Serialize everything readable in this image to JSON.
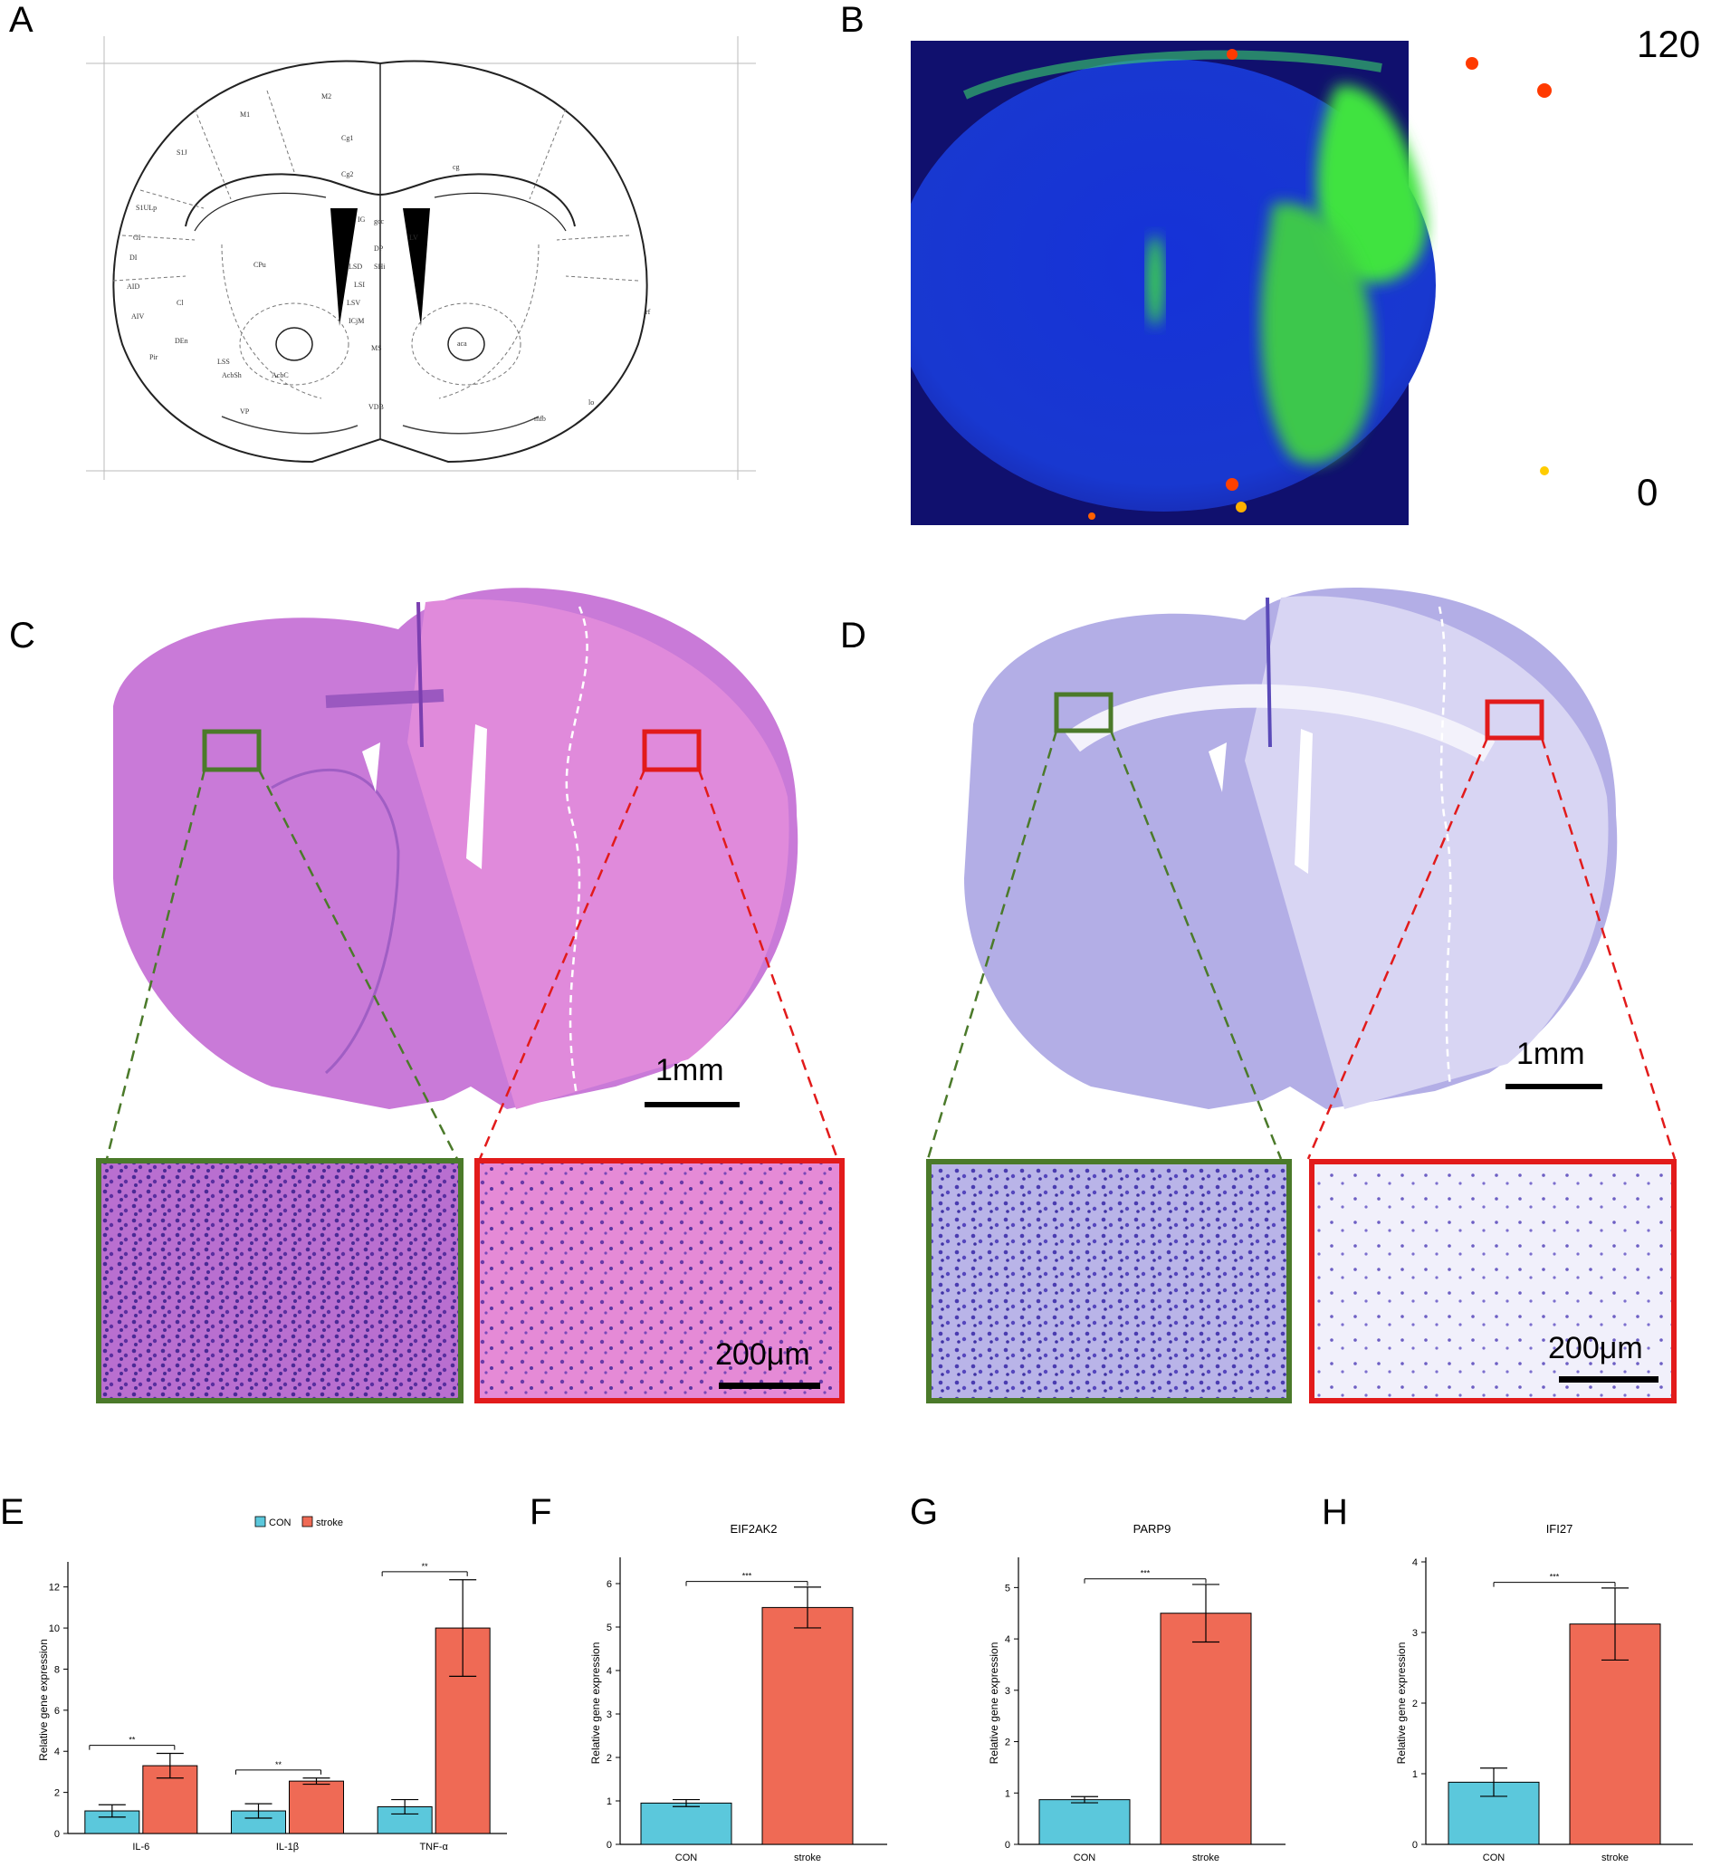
{
  "panels": {
    "A": {
      "letter": "A"
    },
    "B": {
      "letter": "B",
      "colorbar_max": "120",
      "colorbar_min": "0"
    },
    "C": {
      "letter": "C",
      "scale_main": "1mm",
      "scale_inset": "200μm"
    },
    "D": {
      "letter": "D",
      "scale_main": "1mm",
      "scale_inset": "200μm"
    },
    "E": {
      "letter": "E"
    },
    "F": {
      "letter": "F"
    },
    "G": {
      "letter": "G"
    },
    "H": {
      "letter": "H"
    }
  },
  "atlas_labels": [
    "M1",
    "M2",
    "Cg1",
    "Cg2",
    "S1J",
    "S1ULp",
    "GI",
    "DI",
    "AID",
    "AIV",
    "Cl",
    "Pir",
    "DEn",
    "LSS",
    "AcbSh",
    "AcbC",
    "IG",
    "gcc",
    "DP",
    "LSD",
    "SHi",
    "LSI",
    "LSV",
    "ICjM",
    "MS",
    "VDB",
    "VP",
    "CPu",
    "LV",
    "aca",
    "cg",
    "rf",
    "mfb",
    "lo"
  ],
  "colors": {
    "con": "#5bc8dc",
    "stroke": "#ef6a55",
    "green_box": "#4b7a2a",
    "red_box": "#e21b1b"
  },
  "chart_data": [
    {
      "type": "bar",
      "panel": "E",
      "title": "",
      "categories": [
        "IL-6",
        "IL-1β",
        "TNF-α"
      ],
      "series": [
        {
          "name": "CON",
          "values": [
            1.1,
            1.1,
            1.3
          ],
          "errors": [
            0.3,
            0.35,
            0.35
          ]
        },
        {
          "name": "stroke",
          "values": [
            3.3,
            2.55,
            10.0
          ],
          "errors": [
            0.6,
            0.15,
            2.35
          ]
        }
      ],
      "significance": [
        "**",
        "**",
        "**"
      ],
      "xlabel": "",
      "ylabel": "Relative gene expression",
      "ylim": [
        0,
        13
      ],
      "yticks": [
        0,
        2,
        4,
        6,
        8,
        10,
        12
      ],
      "legend": "top-center",
      "grid": false
    },
    {
      "type": "bar",
      "panel": "F",
      "title": "EIF2AK2",
      "categories": [
        "CON",
        "stroke"
      ],
      "series": [
        {
          "name": "",
          "values": [
            0.95,
            5.45
          ],
          "errors": [
            0.08,
            0.47
          ]
        }
      ],
      "significance": [
        "***"
      ],
      "xlabel": "",
      "ylabel": "Relative gene expression",
      "ylim": [
        0,
        6.5
      ],
      "yticks": [
        0,
        1,
        2,
        3,
        4,
        5,
        6
      ],
      "grid": false
    },
    {
      "type": "bar",
      "panel": "G",
      "title": "PARP9",
      "categories": [
        "CON",
        "stroke"
      ],
      "series": [
        {
          "name": "",
          "values": [
            0.87,
            4.5
          ],
          "errors": [
            0.06,
            0.56
          ]
        }
      ],
      "significance": [
        "***"
      ],
      "xlabel": "",
      "ylabel": "Relative gene expression",
      "ylim": [
        0,
        5.5
      ],
      "yticks": [
        0,
        1,
        2,
        3,
        4,
        5
      ],
      "grid": false
    },
    {
      "type": "bar",
      "panel": "H",
      "title": "IFI27",
      "categories": [
        "CON",
        "stroke"
      ],
      "series": [
        {
          "name": "",
          "values": [
            0.88,
            3.12
          ],
          "errors": [
            0.2,
            0.51
          ]
        }
      ],
      "significance": [
        "***"
      ],
      "xlabel": "",
      "ylabel": "Relative gene expression",
      "ylim": [
        0,
        4
      ],
      "yticks": [
        0,
        1,
        2,
        3,
        4
      ],
      "grid": false
    }
  ]
}
